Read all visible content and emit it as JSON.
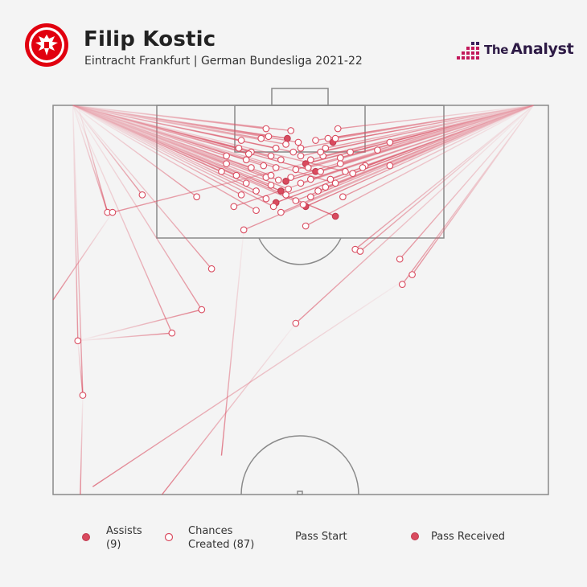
{
  "header": {
    "player": "Filip Kostic",
    "subtitle": "Eintracht Frankfurt | German Bundesliga 2021-22"
  },
  "brand": {
    "the": "The",
    "name": "Analyst"
  },
  "colors": {
    "accent": "#d94b5f",
    "line": "#e07080",
    "pitch_line": "#8a8a8a",
    "brand_pink": "#c2185b",
    "brand_purple": "#3a1f5c",
    "crest_red": "#e1000f"
  },
  "legend": {
    "assists_label": "Assists",
    "assists_count": "(9)",
    "chances_label": "Chances",
    "chances_count": "Created (87)",
    "pass_start": "Pass Start",
    "pass_received": "Pass Received"
  },
  "chart_data": {
    "type": "scatter",
    "description_units": "pitch coordinates: x 0-100 left-right, y 0-100 from attacking goal line toward halfway",
    "series": [
      {
        "name": "Assists",
        "points": [
          [
            4,
            0,
            47.3,
            8.5
          ],
          [
            97,
            0,
            56.5,
            9.5
          ],
          [
            97,
            0,
            51,
            15
          ],
          [
            4,
            0,
            53,
            17
          ],
          [
            97,
            0,
            47,
            19.5
          ],
          [
            4,
            0,
            46,
            22
          ],
          [
            97,
            0,
            45,
            25
          ],
          [
            97,
            0,
            51,
            26
          ],
          [
            4,
            0,
            57,
            28.5
          ]
        ]
      },
      {
        "name": "Chances Created",
        "points": [
          [
            4,
            0,
            43,
            6
          ],
          [
            4,
            0,
            48,
            6.5
          ],
          [
            97,
            0,
            57.5,
            6
          ],
          [
            4,
            0,
            42,
            8.5
          ],
          [
            97,
            0,
            57,
            8.5
          ],
          [
            4,
            0,
            38,
            9
          ],
          [
            4,
            0,
            47,
            10
          ],
          [
            97,
            0,
            53,
            9
          ],
          [
            4,
            0,
            37.5,
            11
          ],
          [
            4,
            0,
            45,
            11
          ],
          [
            97,
            0,
            50,
            11
          ],
          [
            4,
            0,
            40,
            12
          ],
          [
            97,
            0,
            55,
            11
          ],
          [
            4,
            0,
            35,
            13
          ],
          [
            4,
            0,
            44,
            13
          ],
          [
            97,
            0,
            50,
            13
          ],
          [
            97,
            0,
            54.5,
            13
          ],
          [
            97,
            0,
            60,
            12
          ],
          [
            97,
            0,
            68,
            9.5
          ],
          [
            4,
            0,
            39,
            14
          ],
          [
            4,
            0,
            46,
            14
          ],
          [
            97,
            0,
            52,
            14
          ],
          [
            97,
            0,
            58,
            13.5
          ],
          [
            97,
            0,
            63,
            15.5
          ],
          [
            97,
            0,
            68,
            15.5
          ],
          [
            4,
            0,
            34,
            17
          ],
          [
            4,
            0,
            40,
            16
          ],
          [
            4,
            0,
            45,
            16
          ],
          [
            97,
            0,
            49,
            16.5
          ],
          [
            97,
            0,
            54,
            17
          ],
          [
            4,
            0,
            59,
            17
          ],
          [
            4,
            0,
            37,
            18
          ],
          [
            4,
            0,
            43,
            18.5
          ],
          [
            97,
            0,
            48,
            18.5
          ],
          [
            97,
            0,
            52,
            19
          ],
          [
            4,
            0,
            57,
            20
          ],
          [
            4,
            0,
            39,
            20
          ],
          [
            4,
            0,
            44,
            20.5
          ],
          [
            97,
            0,
            50,
            20
          ],
          [
            97,
            0,
            55,
            21
          ],
          [
            4,
            0,
            41,
            22
          ],
          [
            97,
            0,
            47,
            23
          ],
          [
            97,
            0,
            52,
            23.5
          ],
          [
            4,
            0,
            38,
            23
          ],
          [
            4,
            0,
            43,
            24
          ],
          [
            97,
            0,
            49,
            24.5
          ],
          [
            4,
            0,
            44.5,
            26
          ],
          [
            97,
            0,
            46,
            27.5
          ],
          [
            4,
            0,
            41,
            27
          ],
          [
            97,
            0,
            38.5,
            32
          ],
          [
            97,
            0,
            51,
            31
          ],
          [
            97,
            0,
            36.5,
            26
          ],
          [
            4,
            0,
            18,
            23
          ],
          [
            4,
            0,
            29,
            23.5
          ],
          [
            4,
            0,
            11,
            27.5
          ],
          [
            97,
            0,
            12,
            27.5
          ],
          [
            4,
            0,
            32,
            42
          ],
          [
            97,
            0,
            61,
            37
          ],
          [
            97,
            0,
            62,
            37.5
          ],
          [
            97,
            0,
            70,
            39.5
          ],
          [
            97,
            0,
            70.5,
            46
          ],
          [
            97,
            0,
            72.5,
            43.5
          ],
          [
            97,
            0,
            58.5,
            23.5
          ],
          [
            97,
            0,
            49,
            56
          ],
          [
            4,
            0,
            5,
            60.5
          ],
          [
            4,
            0,
            30,
            52.5
          ],
          [
            4,
            0,
            24,
            58.5
          ],
          [
            4,
            0,
            6,
            74.5
          ],
          [
            97,
            0,
            65.5,
            11.5
          ],
          [
            4,
            0,
            43.5,
            8
          ],
          [
            97,
            0,
            55.5,
            8.5
          ],
          [
            4,
            0,
            48.5,
            12
          ],
          [
            97,
            0,
            51.5,
            16
          ],
          [
            4,
            0,
            42.5,
            15.5
          ],
          [
            97,
            0,
            60.5,
            17.5
          ],
          [
            4,
            0,
            47.5,
            21.5
          ],
          [
            97,
            0,
            53.5,
            22
          ],
          [
            4,
            0,
            35,
            15
          ],
          [
            97,
            0,
            58,
            15
          ],
          [
            4,
            0,
            50.5,
            25.5
          ],
          [
            97,
            0,
            56,
            19
          ],
          [
            4,
            0,
            45.5,
            19.2
          ],
          [
            97,
            0,
            62.5,
            16
          ],
          [
            4,
            0,
            39.5,
            12.5
          ],
          [
            97,
            0,
            54,
            12
          ],
          [
            4,
            0,
            49.5,
            9.5
          ],
          [
            4,
            0,
            44,
            18
          ]
        ]
      }
    ],
    "origin_lines": [
      {
        "from": [
          5,
          0
        ],
        "to": [
          11,
          27.5
        ]
      },
      {
        "from": [
          12,
          27.5
        ],
        "to": [
          0,
          50
        ]
      },
      {
        "from": [
          5,
          60.5
        ],
        "to": [
          30,
          52.5
        ]
      },
      {
        "from": [
          5,
          60.5
        ],
        "to": [
          24,
          58.5
        ]
      },
      {
        "from": [
          5,
          60.5
        ],
        "to": [
          6,
          74.5
        ]
      },
      {
        "from": [
          6,
          74.5
        ],
        "to": [
          5.5,
          100
        ]
      },
      {
        "from": [
          49,
          56
        ],
        "to": [
          22,
          100
        ]
      },
      {
        "from": [
          72.5,
          43.5
        ],
        "to": [
          8,
          98
        ]
      },
      {
        "from": [
          38.5,
          32
        ],
        "to": [
          34,
          90
        ]
      }
    ]
  }
}
